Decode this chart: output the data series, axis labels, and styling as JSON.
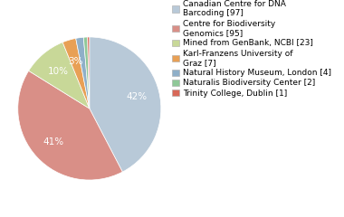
{
  "labels": [
    "Canadian Centre for DNA\nBarcoding [97]",
    "Centre for Biodiversity\nGenomics [95]",
    "Mined from GenBank, NCBI [23]",
    "Karl-Franzens University of\nGraz [7]",
    "Natural History Museum, London [4]",
    "Naturalis Biodiversity Center [2]",
    "Trinity College, Dublin [1]"
  ],
  "values": [
    97,
    95,
    23,
    7,
    4,
    2,
    1
  ],
  "colors": [
    "#b8c9d8",
    "#d98f87",
    "#c8d898",
    "#e8a055",
    "#8fafc8",
    "#8fc898",
    "#d86858"
  ],
  "pct_labels": [
    "42%",
    "41%",
    "10%",
    "3%",
    "",
    "",
    ""
  ],
  "startangle": 90,
  "background_color": "#ffffff",
  "legend_fontsize": 6.5,
  "pct_fontsize": 7.5
}
